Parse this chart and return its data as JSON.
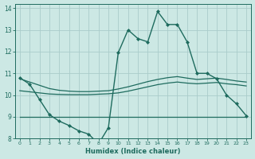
{
  "xlabel": "Humidex (Indice chaleur)",
  "bg_color": "#cce8e4",
  "grid_color": "#aaccca",
  "line_color": "#1e6b5e",
  "xlim": [
    -0.5,
    23.5
  ],
  "ylim": [
    8,
    14.2
  ],
  "yticks": [
    8,
    9,
    10,
    11,
    12,
    13,
    14
  ],
  "xticks": [
    0,
    1,
    2,
    3,
    4,
    5,
    6,
    7,
    8,
    9,
    10,
    11,
    12,
    13,
    14,
    15,
    16,
    17,
    18,
    19,
    20,
    21,
    22,
    23
  ],
  "series": [
    {
      "x": [
        0,
        1,
        2,
        3,
        4,
        5,
        6,
        7,
        8,
        9,
        10,
        11,
        12,
        13,
        14,
        15,
        16,
        17,
        18,
        19,
        20,
        21,
        22,
        23
      ],
      "y": [
        10.8,
        10.5,
        9.8,
        9.1,
        8.8,
        8.6,
        8.35,
        8.2,
        7.75,
        8.5,
        11.95,
        13.0,
        12.6,
        12.45,
        13.85,
        13.25,
        13.25,
        12.45,
        11.0,
        11.0,
        10.75,
        10.0,
        9.6,
        9.05
      ],
      "marker": "D",
      "markersize": 2.0,
      "linewidth": 1.0
    },
    {
      "x": [
        0,
        23
      ],
      "y": [
        9.0,
        9.0
      ],
      "marker": null,
      "markersize": 0,
      "linewidth": 0.9
    },
    {
      "x": [
        0,
        1,
        2,
        3,
        4,
        5,
        6,
        7,
        8,
        9,
        10,
        11,
        12,
        13,
        14,
        15,
        16,
        17,
        18,
        19,
        20,
        21,
        22,
        23
      ],
      "y": [
        10.2,
        10.15,
        10.1,
        10.05,
        10.03,
        10.02,
        10.02,
        10.02,
        10.04,
        10.06,
        10.1,
        10.18,
        10.28,
        10.38,
        10.48,
        10.55,
        10.6,
        10.55,
        10.52,
        10.55,
        10.58,
        10.52,
        10.48,
        10.42
      ],
      "marker": null,
      "markersize": 0,
      "linewidth": 0.9
    },
    {
      "x": [
        0,
        1,
        2,
        3,
        4,
        5,
        6,
        7,
        8,
        9,
        10,
        11,
        12,
        13,
        14,
        15,
        16,
        17,
        18,
        19,
        20,
        21,
        22,
        23
      ],
      "y": [
        10.75,
        10.6,
        10.45,
        10.3,
        10.22,
        10.18,
        10.16,
        10.16,
        10.18,
        10.2,
        10.28,
        10.38,
        10.5,
        10.62,
        10.72,
        10.8,
        10.85,
        10.78,
        10.72,
        10.75,
        10.78,
        10.72,
        10.65,
        10.6
      ],
      "marker": null,
      "markersize": 0,
      "linewidth": 0.9
    }
  ]
}
